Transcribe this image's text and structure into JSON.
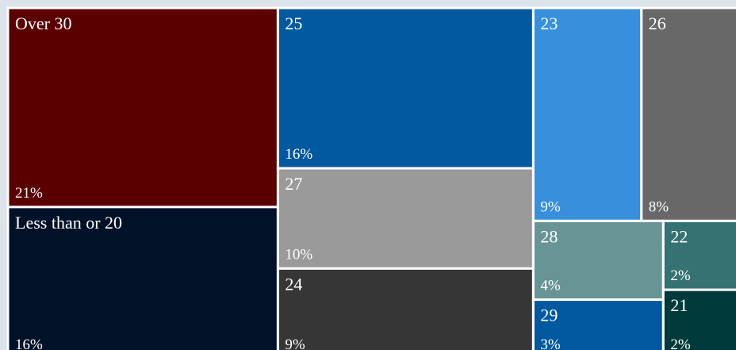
{
  "chart_data": {
    "type": "treemap",
    "categories": [
      "Over 30",
      "Less than or 20",
      "25",
      "27",
      "24",
      "23",
      "26",
      "28",
      "29",
      "22",
      "21"
    ],
    "values": [
      21,
      16,
      16,
      10,
      9,
      9,
      8,
      4,
      3,
      2,
      2
    ],
    "value_labels": [
      "21%",
      "16%",
      "16%",
      "10%",
      "9%",
      "9%",
      "8%",
      "4%",
      "3%",
      "2%",
      "2%"
    ],
    "colors": [
      "#5a0000",
      "#001128",
      "#0359a0",
      "#9a9a9a",
      "#363636",
      "#3890dc",
      "#686868",
      "#689496",
      "#0359a0",
      "#377272",
      "#003a3a"
    ]
  }
}
